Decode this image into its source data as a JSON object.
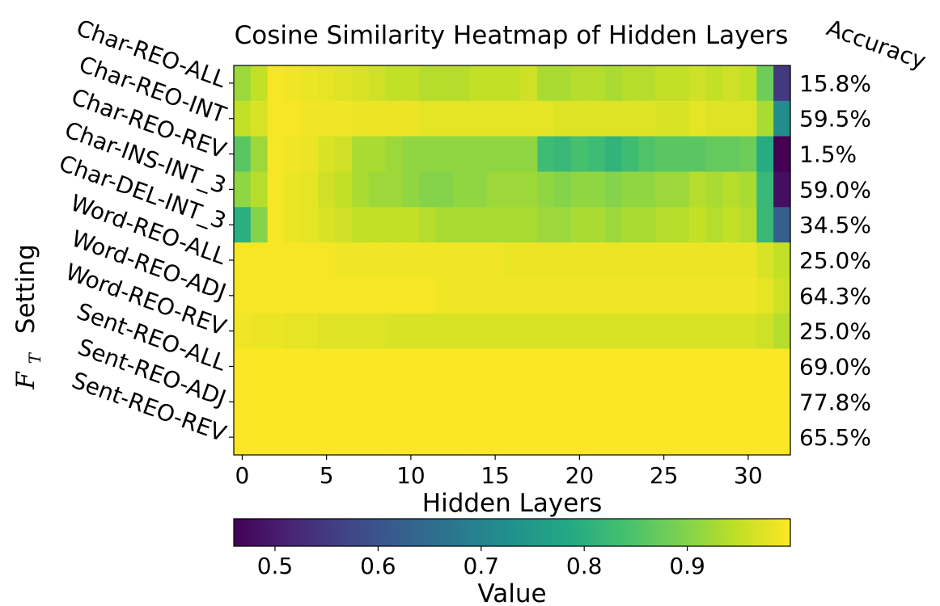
{
  "chart_data": {
    "type": "heatmap",
    "title": "Cosine Similarity Heatmap of Hidden Layers",
    "xlabel": "Hidden Layers",
    "ylabel": "𝓕𝓣  Setting",
    "ylabel_script": "F",
    "ylabel_sub": "T",
    "ylabel_text": "Setting",
    "accuracy_header": "Accuracy",
    "colorbar_label": "Value",
    "x_ticks": [
      0,
      5,
      10,
      15,
      20,
      25,
      30
    ],
    "x_range": [
      -0.5,
      32.5
    ],
    "colorbar_ticks": [
      "0.5",
      "0.6",
      "0.7",
      "0.8",
      "0.9"
    ],
    "colorbar_range": [
      0.46,
      1.0
    ],
    "colormap": "viridis",
    "rows": [
      "Char-REO-ALL",
      "Char-REO-INT",
      "Char-REO-REV",
      "Char-INS-INT_3",
      "Char-DEL-INT_3",
      "Word-REO-ALL",
      "Word-REO-ADJ",
      "Word-REO-REV",
      "Sent-REO-ALL",
      "Sent-REO-ADJ",
      "Sent-REO-REV"
    ],
    "accuracy": [
      "15.8%",
      "59.5%",
      "1.5%",
      "59.0%",
      "34.5%",
      "25.0%",
      "64.3%",
      "25.0%",
      "69.0%",
      "77.8%",
      "65.5%"
    ],
    "accuracy_values": [
      15.8,
      59.5,
      1.5,
      59.0,
      34.5,
      25.0,
      64.3,
      25.0,
      69.0,
      77.8,
      65.5
    ],
    "accuracy_range": [
      1.5,
      77.8
    ],
    "values": [
      [
        0.92,
        0.95,
        0.995,
        0.99,
        0.985,
        0.98,
        0.975,
        0.97,
        0.96,
        0.95,
        0.95,
        0.94,
        0.94,
        0.94,
        0.95,
        0.95,
        0.95,
        0.96,
        0.93,
        0.93,
        0.94,
        0.94,
        0.93,
        0.94,
        0.94,
        0.95,
        0.95,
        0.96,
        0.95,
        0.96,
        0.95,
        0.88,
        0.55
      ],
      [
        0.95,
        0.97,
        0.995,
        0.995,
        0.99,
        0.99,
        0.99,
        0.985,
        0.985,
        0.985,
        0.985,
        0.98,
        0.98,
        0.98,
        0.98,
        0.98,
        0.98,
        0.98,
        0.98,
        0.975,
        0.975,
        0.975,
        0.975,
        0.975,
        0.975,
        0.97,
        0.97,
        0.98,
        0.975,
        0.975,
        0.975,
        0.93,
        0.72
      ],
      [
        0.86,
        0.92,
        0.995,
        0.99,
        0.985,
        0.97,
        0.96,
        0.93,
        0.93,
        0.92,
        0.91,
        0.91,
        0.91,
        0.91,
        0.91,
        0.91,
        0.91,
        0.91,
        0.83,
        0.82,
        0.84,
        0.83,
        0.81,
        0.83,
        0.85,
        0.86,
        0.86,
        0.86,
        0.87,
        0.87,
        0.88,
        0.79,
        0.46
      ],
      [
        0.91,
        0.94,
        0.995,
        0.985,
        0.98,
        0.96,
        0.95,
        0.93,
        0.92,
        0.92,
        0.91,
        0.9,
        0.9,
        0.91,
        0.91,
        0.92,
        0.92,
        0.92,
        0.91,
        0.9,
        0.91,
        0.91,
        0.9,
        0.91,
        0.91,
        0.92,
        0.92,
        0.94,
        0.93,
        0.94,
        0.93,
        0.82,
        0.48
      ],
      [
        0.8,
        0.9,
        0.995,
        0.985,
        0.98,
        0.97,
        0.96,
        0.95,
        0.95,
        0.95,
        0.95,
        0.94,
        0.93,
        0.93,
        0.93,
        0.93,
        0.93,
        0.93,
        0.92,
        0.92,
        0.93,
        0.93,
        0.92,
        0.93,
        0.93,
        0.94,
        0.94,
        0.95,
        0.94,
        0.95,
        0.94,
        0.82,
        0.62
      ],
      [
        0.995,
        0.995,
        0.995,
        0.995,
        0.995,
        0.995,
        0.99,
        0.99,
        0.99,
        0.99,
        0.99,
        0.99,
        0.99,
        0.99,
        0.99,
        0.99,
        0.985,
        0.985,
        0.985,
        0.985,
        0.985,
        0.985,
        0.985,
        0.985,
        0.985,
        0.985,
        0.985,
        0.985,
        0.985,
        0.985,
        0.985,
        0.97,
        0.95
      ],
      [
        0.995,
        0.995,
        0.995,
        0.995,
        0.995,
        0.995,
        0.995,
        0.995,
        0.995,
        0.995,
        0.995,
        0.995,
        0.99,
        0.99,
        0.99,
        0.99,
        0.99,
        0.99,
        0.99,
        0.99,
        0.99,
        0.99,
        0.99,
        0.99,
        0.99,
        0.99,
        0.99,
        0.99,
        0.99,
        0.99,
        0.99,
        0.98,
        0.96
      ],
      [
        0.99,
        0.985,
        0.985,
        0.98,
        0.98,
        0.975,
        0.975,
        0.975,
        0.975,
        0.97,
        0.97,
        0.97,
        0.97,
        0.97,
        0.97,
        0.97,
        0.97,
        0.97,
        0.97,
        0.97,
        0.97,
        0.97,
        0.97,
        0.97,
        0.97,
        0.97,
        0.97,
        0.97,
        0.97,
        0.97,
        0.97,
        0.96,
        0.94
      ],
      [
        0.998,
        0.998,
        0.998,
        0.998,
        0.998,
        0.998,
        0.998,
        0.998,
        0.998,
        0.998,
        0.998,
        0.998,
        0.998,
        0.998,
        0.998,
        0.998,
        0.998,
        0.998,
        0.998,
        0.998,
        0.998,
        0.998,
        0.998,
        0.998,
        0.998,
        0.998,
        0.998,
        0.998,
        0.998,
        0.998,
        0.998,
        0.998,
        0.998
      ],
      [
        0.998,
        0.998,
        0.998,
        0.998,
        0.998,
        0.998,
        0.998,
        0.998,
        0.998,
        0.998,
        0.998,
        0.998,
        0.998,
        0.998,
        0.998,
        0.998,
        0.998,
        0.998,
        0.998,
        0.998,
        0.998,
        0.998,
        0.998,
        0.998,
        0.998,
        0.998,
        0.998,
        0.998,
        0.998,
        0.998,
        0.998,
        0.998,
        0.998
      ],
      [
        0.998,
        0.998,
        0.998,
        0.998,
        0.998,
        0.998,
        0.998,
        0.998,
        0.998,
        0.998,
        0.998,
        0.998,
        0.998,
        0.998,
        0.998,
        0.998,
        0.998,
        0.998,
        0.998,
        0.998,
        0.998,
        0.998,
        0.998,
        0.998,
        0.998,
        0.998,
        0.998,
        0.998,
        0.998,
        0.998,
        0.998,
        0.998,
        0.998
      ]
    ]
  }
}
